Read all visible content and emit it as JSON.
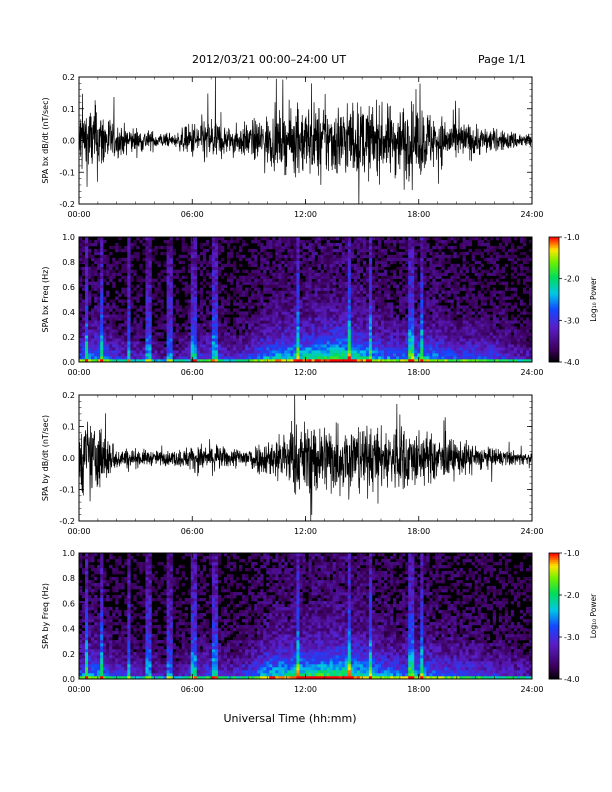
{
  "header": {
    "title": "2012/03/21   00:00–24:00 UT",
    "page": "Page 1/1"
  },
  "xaxis_title": "Universal Time (hh:mm)",
  "colors": {
    "ink": "#000000",
    "background": "#ffffff",
    "spectrogram_bg": "#000000"
  },
  "chart_data": [
    {
      "type": "line",
      "ylabel": "SPA bx dB/dt (nT/sec)",
      "xlim": [
        "00:00",
        "24:00"
      ],
      "ylim": [
        -0.2,
        0.2
      ],
      "x_ticks": [
        "00:00",
        "06:00",
        "12:00",
        "18:00",
        "24:00"
      ],
      "y_ticks": [
        "-0.2",
        "-0.1",
        "0.0",
        "0.1",
        "0.2"
      ],
      "series": [
        {
          "x_hours": [
            0,
            1,
            2,
            3,
            4,
            5,
            6,
            7,
            8,
            9,
            10,
            11,
            12,
            13,
            14,
            15,
            16,
            17,
            18,
            19,
            20,
            21,
            22,
            23,
            24
          ],
          "amplitude": [
            0.2,
            0.2,
            0.09,
            0.07,
            0.05,
            0.03,
            0.1,
            0.14,
            0.07,
            0.1,
            0.14,
            0.16,
            0.2,
            0.2,
            0.2,
            0.2,
            0.18,
            0.2,
            0.2,
            0.14,
            0.11,
            0.09,
            0.06,
            0.05,
            0.04
          ]
        }
      ]
    },
    {
      "type": "heatmap",
      "ylabel": "SPA bx Freq (Hz)",
      "xlim": [
        "00:00",
        "24:00"
      ],
      "ylim": [
        0.0,
        1.0
      ],
      "x_ticks": [
        "00:00",
        "06:00",
        "12:00",
        "18:00",
        "24:00"
      ],
      "y_ticks": [
        "0.0",
        "0.2",
        "0.4",
        "0.6",
        "0.8",
        "1.0"
      ],
      "colorbar": {
        "label": "Log₁₀ Power",
        "range": [
          -4.0,
          -1.0
        ],
        "ticks": [
          "-4.0",
          "-3.0",
          "-2.0",
          "-1.0"
        ]
      },
      "x_hours": [
        0,
        1,
        2,
        3,
        4,
        5,
        6,
        7,
        8,
        9,
        10,
        11,
        12,
        13,
        14,
        15,
        16,
        17,
        18,
        19,
        20,
        21,
        22,
        23,
        24
      ],
      "activity": [
        0.55,
        0.6,
        0.4,
        0.35,
        0.3,
        0.25,
        0.4,
        0.45,
        0.35,
        0.45,
        0.65,
        0.7,
        0.75,
        0.8,
        0.85,
        0.75,
        0.6,
        0.55,
        0.65,
        0.6,
        0.5,
        0.5,
        0.45,
        0.35,
        0.3
      ],
      "vertical_streaks_hours": [
        0.4,
        1.2,
        2.6,
        3.7,
        4.8,
        6.1,
        7.2,
        11.6,
        14.3,
        15.4,
        17.6,
        18.2
      ]
    },
    {
      "type": "line",
      "ylabel": "SPA by dB/dt (nT/sec)",
      "xlim": [
        "00:00",
        "24:00"
      ],
      "ylim": [
        -0.2,
        0.2
      ],
      "x_ticks": [
        "00:00",
        "06:00",
        "12:00",
        "18:00",
        "24:00"
      ],
      "y_ticks": [
        "-0.2",
        "-0.1",
        "0.0",
        "0.1",
        "0.2"
      ],
      "series": [
        {
          "x_hours": [
            0,
            1,
            2,
            3,
            4,
            5,
            6,
            7,
            8,
            9,
            10,
            11,
            12,
            13,
            14,
            15,
            16,
            17,
            18,
            19,
            20,
            21,
            22,
            23,
            24
          ],
          "amplitude": [
            0.2,
            0.2,
            0.06,
            0.05,
            0.04,
            0.04,
            0.07,
            0.08,
            0.05,
            0.07,
            0.1,
            0.16,
            0.2,
            0.2,
            0.2,
            0.18,
            0.16,
            0.2,
            0.15,
            0.12,
            0.1,
            0.08,
            0.05,
            0.04,
            0.03
          ]
        }
      ]
    },
    {
      "type": "heatmap",
      "ylabel": "SPA by Freq (Hz)",
      "xlim": [
        "00:00",
        "24:00"
      ],
      "ylim": [
        0.0,
        1.0
      ],
      "x_ticks": [
        "00:00",
        "06:00",
        "12:00",
        "18:00",
        "24:00"
      ],
      "y_ticks": [
        "0.0",
        "0.2",
        "0.4",
        "0.6",
        "0.8",
        "1.0"
      ],
      "colorbar": {
        "label": "Log₁₀ Power",
        "range": [
          -4.0,
          -1.0
        ],
        "ticks": [
          "-4.0",
          "-3.0",
          "-2.0",
          "-1.0"
        ]
      },
      "x_hours": [
        0,
        1,
        2,
        3,
        4,
        5,
        6,
        7,
        8,
        9,
        10,
        11,
        12,
        13,
        14,
        15,
        16,
        17,
        18,
        19,
        20,
        21,
        22,
        23,
        24
      ],
      "activity": [
        0.55,
        0.6,
        0.4,
        0.35,
        0.3,
        0.25,
        0.4,
        0.45,
        0.35,
        0.45,
        0.7,
        0.75,
        0.8,
        0.85,
        0.85,
        0.75,
        0.6,
        0.55,
        0.6,
        0.55,
        0.5,
        0.45,
        0.4,
        0.35,
        0.3
      ],
      "vertical_streaks_hours": [
        0.4,
        1.2,
        2.6,
        3.7,
        4.8,
        6.1,
        7.2,
        11.6,
        14.3,
        15.4,
        17.6,
        18.2
      ]
    }
  ]
}
